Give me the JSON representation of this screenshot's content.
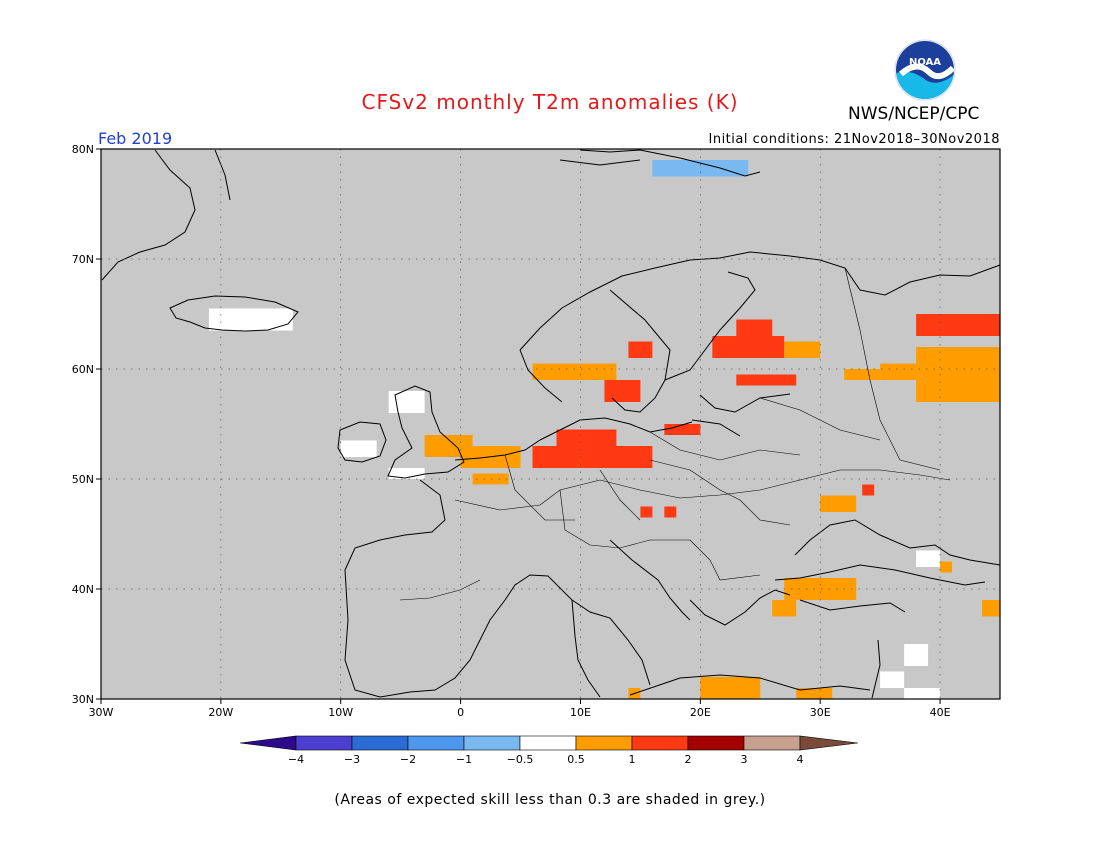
{
  "header": {
    "title": "CFSv2 monthly T2m anomalies (K)",
    "agency": "NWS/NCEP/CPC",
    "period": "Feb 2019",
    "initial_conditions": "Initial conditions: 21Nov2018–30Nov2018"
  },
  "logo": {
    "text": "NOAA"
  },
  "map": {
    "lon_range": [
      -30,
      45
    ],
    "lat_range": [
      30,
      80
    ],
    "lat_ticks": [
      {
        "value": 80,
        "label": "80N"
      },
      {
        "value": 70,
        "label": "70N"
      },
      {
        "value": 60,
        "label": "60N"
      },
      {
        "value": 50,
        "label": "50N"
      },
      {
        "value": 40,
        "label": "40N"
      },
      {
        "value": 30,
        "label": "30N"
      }
    ],
    "lon_ticks": [
      {
        "value": -30,
        "label": "30W"
      },
      {
        "value": -20,
        "label": "20W"
      },
      {
        "value": -10,
        "label": "10W"
      },
      {
        "value": 0,
        "label": "0"
      },
      {
        "value": 10,
        "label": "10E"
      },
      {
        "value": 20,
        "label": "20E"
      },
      {
        "value": 30,
        "label": "30E"
      },
      {
        "value": 40,
        "label": "40E"
      }
    ],
    "grid": true,
    "low_skill_color": "#c8c8c8",
    "anomaly_cells": [
      {
        "lon": -3,
        "lat": 52,
        "w": 4,
        "h": 2,
        "class": "0.5-1"
      },
      {
        "lon": 0,
        "lat": 51,
        "w": 5,
        "h": 2,
        "class": "0.5-1"
      },
      {
        "lon": 1,
        "lat": 49.5,
        "w": 3,
        "h": 1,
        "class": "0.5-1"
      },
      {
        "lon": 6,
        "lat": 51,
        "w": 10,
        "h": 2,
        "class": "1-2"
      },
      {
        "lon": 8,
        "lat": 53,
        "w": 5,
        "h": 1.5,
        "class": "1-2"
      },
      {
        "lon": 6,
        "lat": 59,
        "w": 4,
        "h": 1.5,
        "class": "0.5-1"
      },
      {
        "lon": 10,
        "lat": 59,
        "w": 3,
        "h": 1.5,
        "class": "0.5-1"
      },
      {
        "lon": 12,
        "lat": 57,
        "w": 3,
        "h": 2,
        "class": "1-2"
      },
      {
        "lon": 14,
        "lat": 61,
        "w": 2,
        "h": 1.5,
        "class": "1-2"
      },
      {
        "lon": 17,
        "lat": 54,
        "w": 3,
        "h": 1,
        "class": "1-2"
      },
      {
        "lon": 21,
        "lat": 61,
        "w": 6,
        "h": 2,
        "class": "1-2"
      },
      {
        "lon": 23,
        "lat": 63,
        "w": 3,
        "h": 1.5,
        "class": "1-2"
      },
      {
        "lon": 23,
        "lat": 58.5,
        "w": 5,
        "h": 1,
        "class": "1-2"
      },
      {
        "lon": 27,
        "lat": 61,
        "w": 3,
        "h": 1.5,
        "class": "0.5-1"
      },
      {
        "lon": 32,
        "lat": 59,
        "w": 3,
        "h": 1,
        "class": "0.5-1"
      },
      {
        "lon": 38,
        "lat": 63,
        "w": 7,
        "h": 2,
        "class": "1-2"
      },
      {
        "lon": 38,
        "lat": 57,
        "w": 7,
        "h": 5,
        "class": "0.5-1"
      },
      {
        "lon": 35,
        "lat": 59,
        "w": 3,
        "h": 1.5,
        "class": "0.5-1"
      },
      {
        "lon": 30,
        "lat": 47,
        "w": 3,
        "h": 1.5,
        "class": "0.5-1"
      },
      {
        "lon": 33.5,
        "lat": 48.5,
        "w": 1,
        "h": 1,
        "class": "1-2"
      },
      {
        "lon": 15,
        "lat": 46.5,
        "w": 1,
        "h": 1,
        "class": "1-2"
      },
      {
        "lon": 17,
        "lat": 46.5,
        "w": 1,
        "h": 1,
        "class": "1-2"
      },
      {
        "lon": 27,
        "lat": 39,
        "w": 6,
        "h": 2,
        "class": "0.5-1"
      },
      {
        "lon": 26,
        "lat": 37.5,
        "w": 2,
        "h": 1.5,
        "class": "0.5-1"
      },
      {
        "lon": 20,
        "lat": 30,
        "w": 5,
        "h": 2,
        "class": "0.5-1"
      },
      {
        "lon": 28,
        "lat": 30,
        "w": 3,
        "h": 1,
        "class": "0.5-1"
      },
      {
        "lon": 14,
        "lat": 30,
        "w": 1,
        "h": 1,
        "class": "0.5-1"
      },
      {
        "lon": 16,
        "lat": 77.5,
        "w": 8,
        "h": 1.5,
        "class": "-1--0.5"
      },
      {
        "lon": 43.5,
        "lat": 37.5,
        "w": 1.5,
        "h": 1.5,
        "class": "0.5-1"
      },
      {
        "lon": 40,
        "lat": 41.5,
        "w": 1,
        "h": 1,
        "class": "0.5-1"
      }
    ],
    "white_cells": [
      {
        "lon": -21,
        "lat": 63.5,
        "w": 7,
        "h": 2
      },
      {
        "lon": -6,
        "lat": 56,
        "w": 3,
        "h": 2
      },
      {
        "lon": -10,
        "lat": 52,
        "w": 3,
        "h": 1.5
      },
      {
        "lon": -6,
        "lat": 50,
        "w": 3,
        "h": 1
      },
      {
        "lon": 37,
        "lat": 33,
        "w": 2,
        "h": 2
      },
      {
        "lon": 35,
        "lat": 31,
        "w": 2,
        "h": 1.5
      },
      {
        "lon": 38,
        "lat": 42,
        "w": 2,
        "h": 1.5
      },
      {
        "lon": 37,
        "lat": 30,
        "w": 3,
        "h": 1
      }
    ]
  },
  "colorbar": {
    "colors": {
      "<-4": "#2d0a8c",
      "-4--3": "#4c3fcf",
      "-3--2": "#2a6bd4",
      "-2--1": "#4d97ec",
      "-1--0.5": "#7ab8f2",
      "-0.5-0.5": "#ffffff",
      "0.5-1": "#ff9d00",
      "1-2": "#ff3a13",
      "2-3": "#a50000",
      "3-4": "#c8a090",
      ">4": "#7a4a3a"
    },
    "labels": [
      "−4",
      "−3",
      "−2",
      "−1",
      "−0.5",
      "0.5",
      "1",
      "2",
      "3",
      "4"
    ]
  },
  "footnote": "(Areas of expected skill less than 0.3 are shaded in grey.)"
}
